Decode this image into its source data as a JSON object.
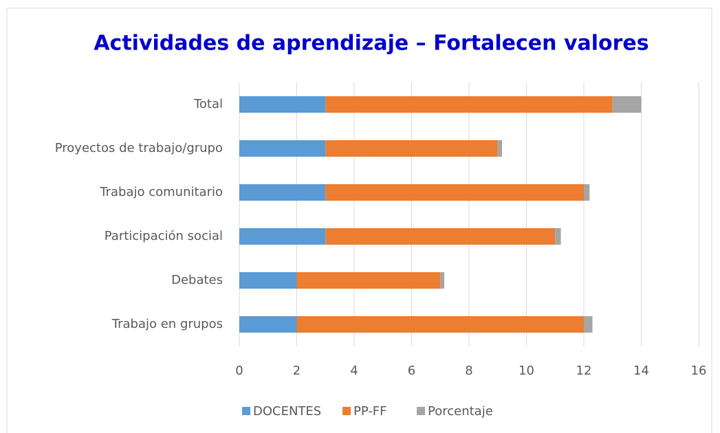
{
  "chart_data": {
    "type": "stacked_bar_horizontal",
    "title": "Actividades de aprendizaje – Fortalecen valores",
    "categories": [
      "Total",
      "Proyectos de trabajo/grupo",
      "Trabajo comunitario",
      "Participación social",
      "Debates",
      "Trabajo en grupos"
    ],
    "series": [
      {
        "name": "DOCENTES",
        "color": "#5b9bd5",
        "values": [
          3,
          3,
          3,
          3,
          2,
          2
        ]
      },
      {
        "name": "PP-FF",
        "color": "#ed7d31",
        "values": [
          10,
          6,
          9,
          8,
          5,
          10
        ]
      },
      {
        "name": "Porcentaje",
        "color": "#a5a5a5",
        "values": [
          1,
          0.15,
          0.2,
          0.2,
          0.14,
          0.3
        ]
      }
    ],
    "xlim": [
      0,
      16
    ],
    "xticks": [
      0,
      2,
      4,
      6,
      8,
      10,
      12,
      14,
      16
    ],
    "grid": true,
    "legend": "bottom"
  }
}
